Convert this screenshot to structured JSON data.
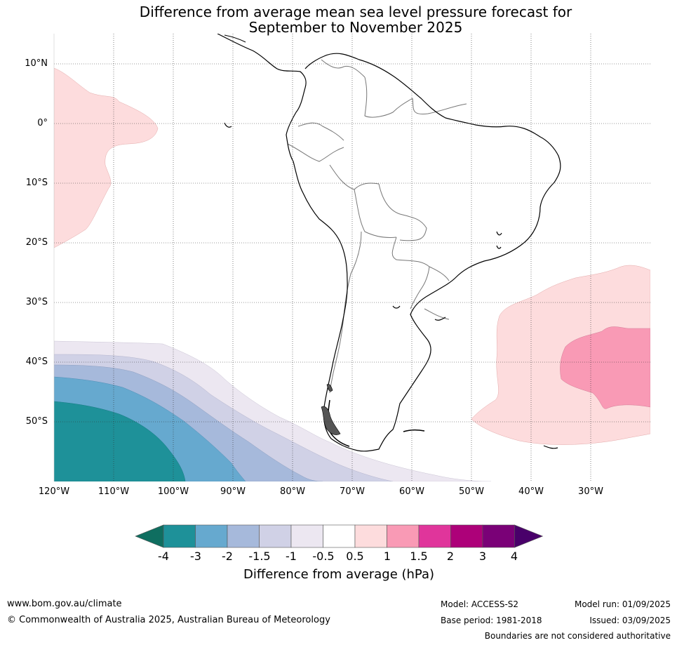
{
  "map": {
    "title_line1": "Difference from average mean sea level pressure forecast for",
    "title_line2": "September to November 2025",
    "lat_labels": [
      "10°N",
      "0°",
      "10°S",
      "20°S",
      "30°S",
      "40°S",
      "50°S"
    ],
    "lon_labels": [
      "120°W",
      "110°W",
      "100°W",
      "90°W",
      "80°W",
      "70°W",
      "60°W",
      "50°W",
      "40°W",
      "30°W"
    ],
    "extent": {
      "lon_min": -120,
      "lon_max": -20,
      "lat_min": -60,
      "lat_max": 15
    },
    "gridlines": true
  },
  "colorbar": {
    "ticks": [
      "-4",
      "-3",
      "-2",
      "-1.5",
      "-1",
      "-0.5",
      "0.5",
      "1",
      "1.5",
      "2",
      "3",
      "4"
    ],
    "colors": [
      "#0f6e60",
      "#1e9199",
      "#66a9cf",
      "#a6b9db",
      "#d0d1e6",
      "#ece7f1",
      "#ffffff",
      "#fddcdd",
      "#f99ab5",
      "#e0359b",
      "#ad0179",
      "#7a0177",
      "#49006a"
    ],
    "label": "Difference from average (hPa)"
  },
  "footer": {
    "website": "www.bom.gov.au/climate",
    "copyright": "© Commonwealth of Australia 2025, Australian Bureau of Meteorology",
    "model": "Model: ACCESS-S2",
    "base_period": "Base period: 1981-2018",
    "model_run": "Model run: 01/09/2025",
    "issued": "Issued: 03/09/2025",
    "boundaries_note": "Boundaries are not considered authoritative"
  }
}
